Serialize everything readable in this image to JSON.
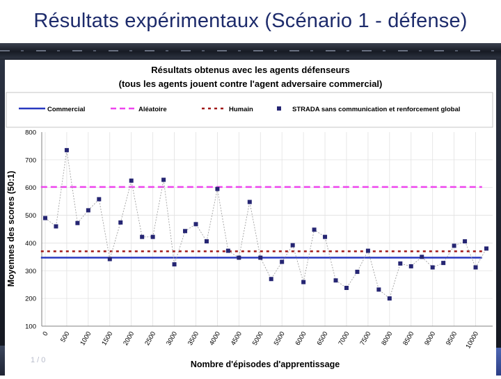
{
  "slide": {
    "title": "Résultats expérimentaux (Scénario 1 - défense)",
    "page_number": "1 / 0"
  },
  "colors": {
    "commercial": "#2838c0",
    "aleatoire": "#ee44ee",
    "humain": "#a01818",
    "strada": "#262673",
    "title_color": "#1d2b6b"
  },
  "chart_data": {
    "type": "line",
    "title": "Résultats obtenus avec les agents défenseurs",
    "subtitle": "(tous les agents jouent contre l'agent adversaire commercial)",
    "xlabel": "Nombre d'épisodes d'apprentissage",
    "ylabel": "Moyennes des scores (50:1)",
    "ylim": [
      100,
      800
    ],
    "yticks": [
      "100",
      "200",
      "300",
      "400",
      "500",
      "600",
      "700",
      "800"
    ],
    "xlim": [
      0,
      10000
    ],
    "xticks": [
      "0",
      "500",
      "1000",
      "1500",
      "2000",
      "2500",
      "3000",
      "3500",
      "4000",
      "4500",
      "5000",
      "5500",
      "6000",
      "6500",
      "7000",
      "7500",
      "8000",
      "8500",
      "9000",
      "9500",
      "10000"
    ],
    "grid": true,
    "legend_position": "top",
    "series": [
      {
        "name": "Commercial",
        "style": "solid-line",
        "y": 347
      },
      {
        "name": "Aléatoire",
        "style": "dashed-line",
        "y": 602
      },
      {
        "name": "Humain",
        "style": "dotted-line",
        "y": 370
      },
      {
        "name": "STRADA sans communication et renforcement global",
        "style": "markers",
        "x": [
          0,
          250,
          500,
          750,
          1000,
          1250,
          1500,
          1750,
          2000,
          2250,
          2500,
          2750,
          3000,
          3250,
          3500,
          3750,
          4000,
          4250,
          4500,
          4750,
          5000,
          5250,
          5500,
          5750,
          6000,
          6250,
          6500,
          6750,
          7000,
          7250,
          7500,
          7750,
          8000,
          8250,
          8500,
          8750,
          9000,
          9250,
          9500,
          9750,
          10000,
          10250
        ],
        "values": [
          490,
          460,
          735,
          472,
          518,
          558,
          342,
          474,
          625,
          422,
          422,
          628,
          323,
          443,
          468,
          406,
          595,
          372,
          347,
          548,
          347,
          270,
          332,
          392,
          259,
          448,
          422,
          265,
          238,
          296,
          372,
          232,
          200,
          326,
          316,
          350,
          312,
          328,
          390,
          406,
          312,
          380
        ]
      }
    ]
  }
}
